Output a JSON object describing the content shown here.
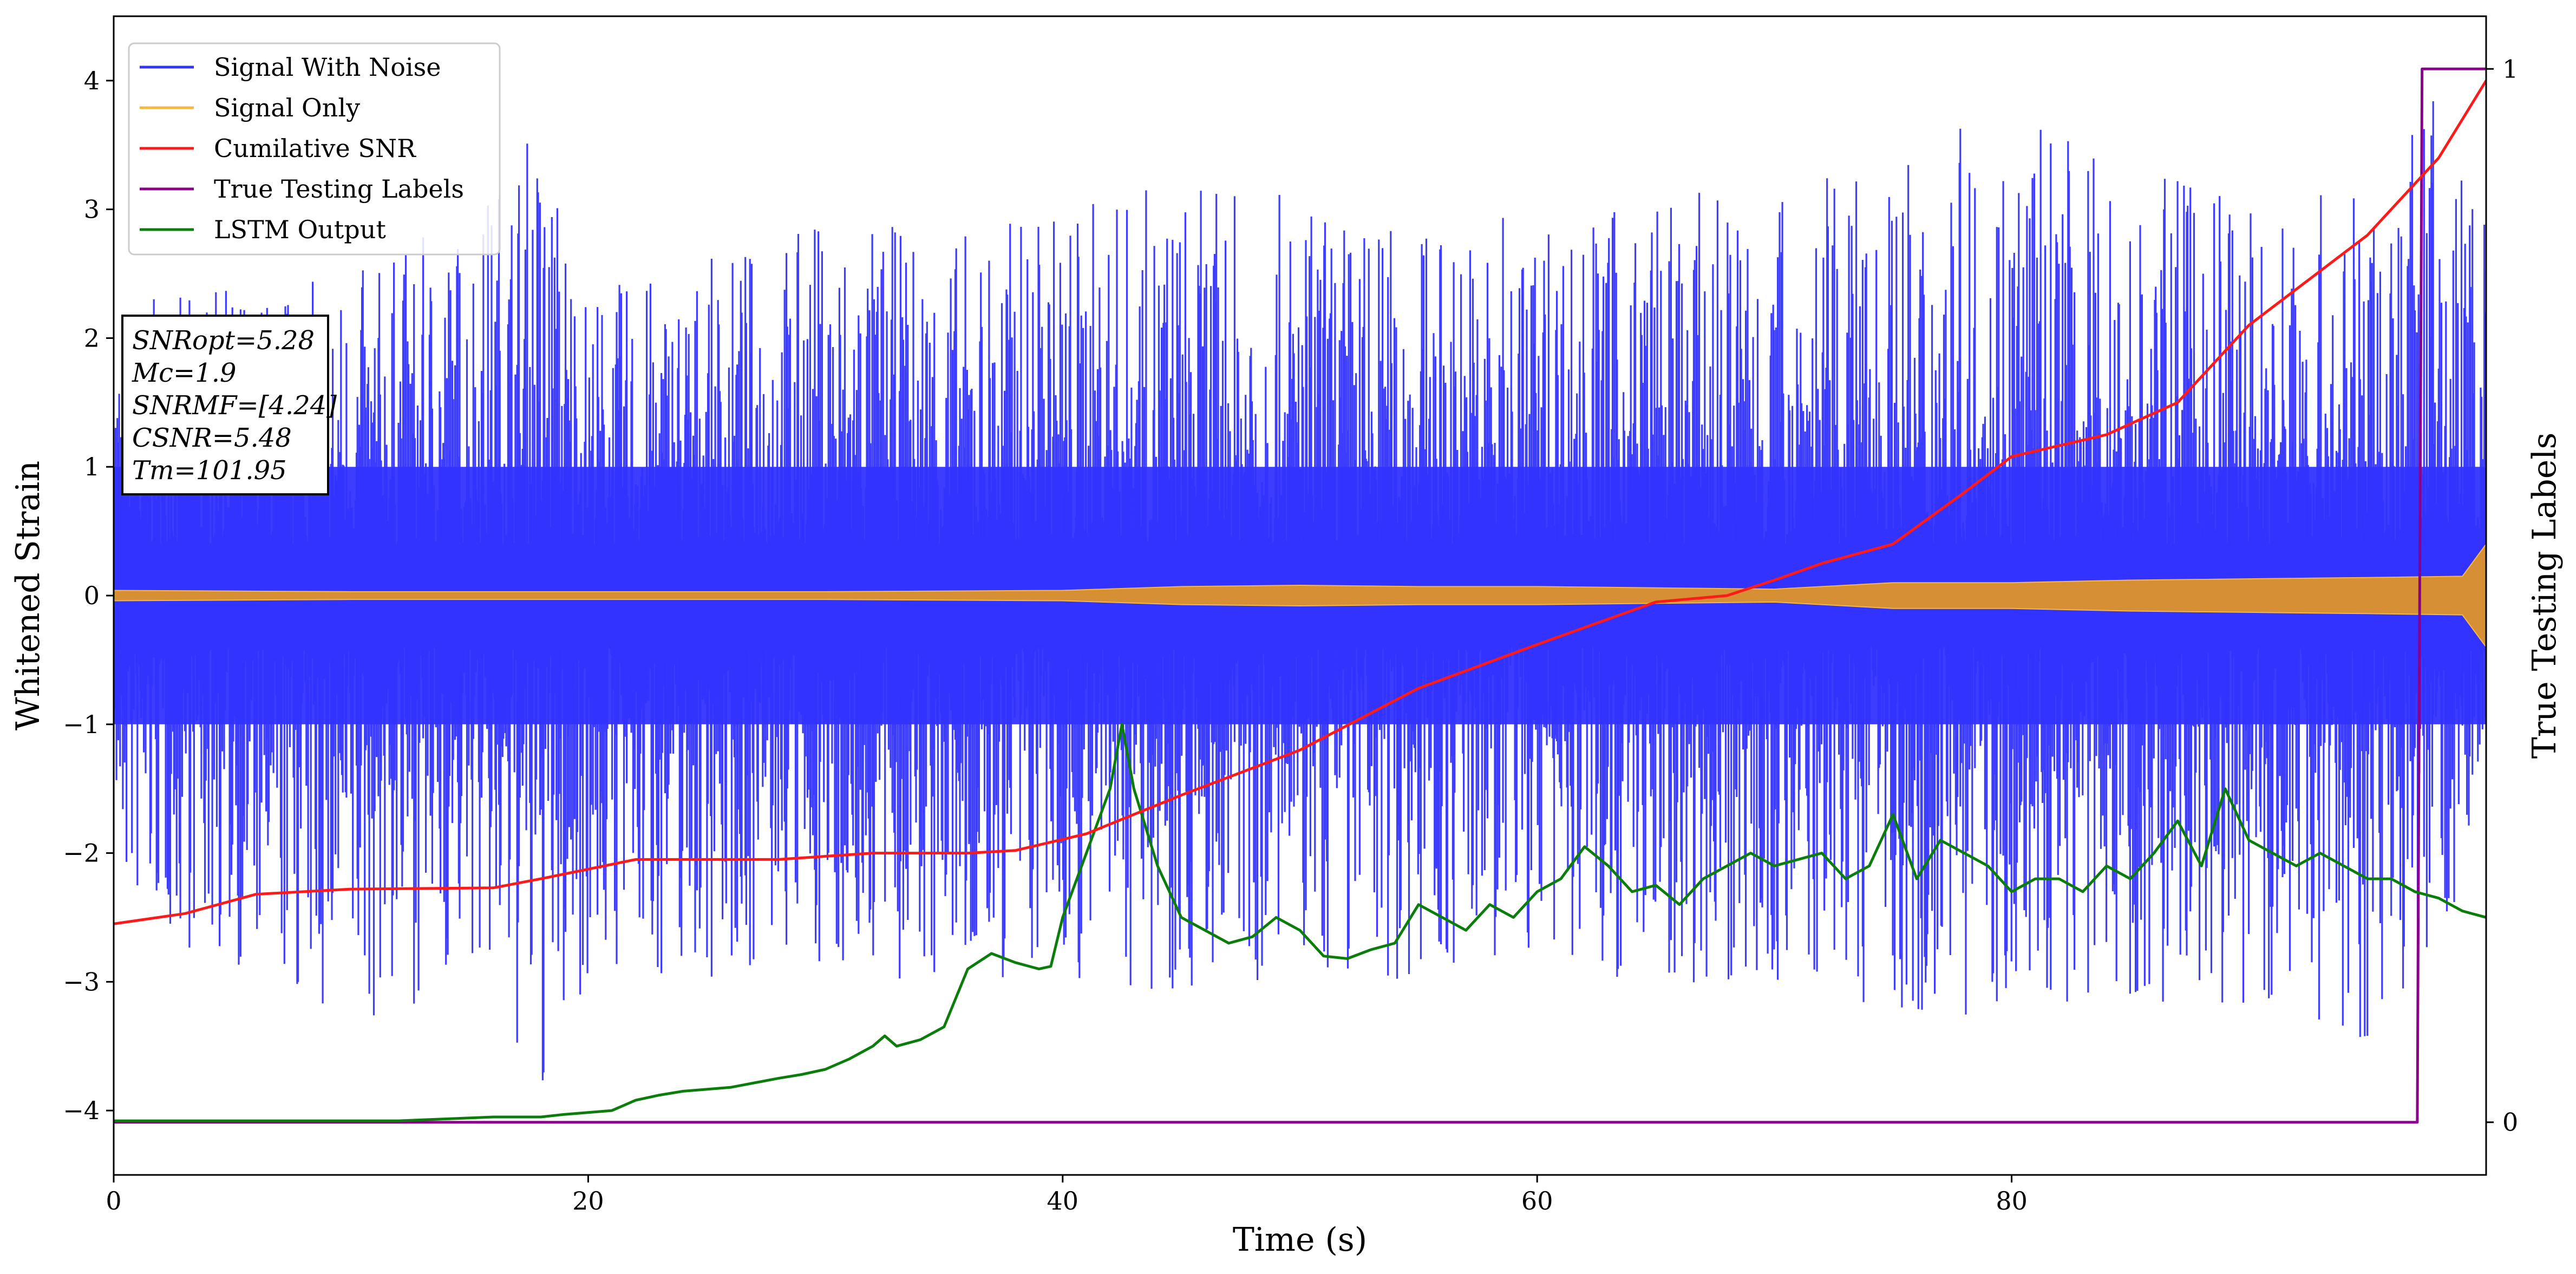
{
  "chart_data": {
    "type": "line",
    "xlabel": "Time (s)",
    "ylabel": "Whitened Strain",
    "ylabel_right": "True Testing Labels",
    "xlim": [
      0,
      100
    ],
    "ylim": [
      -4.5,
      4.5
    ],
    "ylim_right": [
      -0.05,
      1.05
    ],
    "x_ticks": [
      "0",
      "20",
      "40",
      "60",
      "80"
    ],
    "y_ticks": [
      "−4",
      "−3",
      "−2",
      "−1",
      "0",
      "1",
      "2",
      "3",
      "4"
    ],
    "y_ticks_right": [
      "0",
      "1"
    ],
    "grid": false,
    "legend_position": "top-left",
    "legend": [
      {
        "label": "Signal With Noise",
        "color": "#3333ff"
      },
      {
        "label": "Signal Only",
        "color": "#f5b942"
      },
      {
        "label": "Cumilative SNR",
        "color": "#ff1a1a"
      },
      {
        "label": "True Testing Labels",
        "color": "#8b008b"
      },
      {
        "label": "LSTM Output",
        "color": "#0a7d0a"
      }
    ],
    "annotation_lines": [
      "SNRopt=5.28",
      "Mc=1.9",
      "SNRMF=[4.24]",
      "CSNR=5.48",
      "Tm=101.95"
    ],
    "series": [
      {
        "name": "Signal With Noise",
        "axis": "left",
        "color": "#3333ff",
        "x": [
          0,
          1,
          5,
          10,
          15,
          18,
          20,
          25,
          30,
          35,
          40,
          45,
          50,
          55,
          60,
          65,
          70,
          75,
          80,
          85,
          90,
          95,
          98,
          100
        ],
        "upper": [
          2.2,
          2.3,
          2.4,
          2.5,
          3.0,
          3.8,
          2.4,
          2.6,
          3.0,
          2.8,
          3.1,
          3.2,
          3.1,
          2.9,
          3.0,
          3.1,
          3.2,
          3.3,
          3.9,
          3.3,
          3.2,
          3.1,
          4.0,
          3.2
        ],
        "lower": [
          -2.3,
          -2.6,
          -2.9,
          -3.5,
          -2.9,
          -4.1,
          -3.0,
          -3.0,
          -2.9,
          -3.2,
          -3.0,
          -3.1,
          -3.0,
          -3.0,
          -2.9,
          -3.0,
          -3.1,
          -3.2,
          -3.3,
          -3.1,
          -3.3,
          -3.5,
          -3.3,
          -1.0
        ],
        "band_upper": [
          1.0,
          1.0,
          1.0,
          1.0,
          1.0,
          1.0,
          1.0,
          1.0,
          1.0,
          1.0,
          1.0,
          1.0,
          1.0,
          1.0,
          1.0,
          1.0,
          1.0,
          1.0,
          1.0,
          1.0,
          1.0,
          1.0,
          1.0,
          1.0
        ],
        "band_lower": [
          -1.0,
          -1.0,
          -1.0,
          -1.0,
          -1.0,
          -1.0,
          -1.0,
          -1.0,
          -1.0,
          -1.0,
          -1.0,
          -1.0,
          -1.0,
          -1.0,
          -1.0,
          -1.0,
          -1.0,
          -1.0,
          -1.0,
          -1.0,
          -1.0,
          -1.0,
          -1.0,
          -1.0
        ]
      },
      {
        "name": "Signal Only",
        "axis": "left",
        "color": "#f5b942",
        "x": [
          0,
          10,
          20,
          30,
          40,
          45,
          50,
          55,
          60,
          65,
          70,
          75,
          80,
          85,
          90,
          95,
          99,
          100
        ],
        "amplitude": [
          0.04,
          0.03,
          0.03,
          0.03,
          0.04,
          0.07,
          0.08,
          0.07,
          0.07,
          0.06,
          0.05,
          0.1,
          0.1,
          0.12,
          0.13,
          0.14,
          0.15,
          0.4
        ]
      },
      {
        "name": "Cumilative SNR",
        "axis": "left",
        "color": "#ff1a1a",
        "x": [
          0,
          3,
          6,
          10,
          16,
          18,
          22,
          28,
          32,
          36,
          38,
          41,
          45,
          50,
          55,
          60,
          65,
          68,
          70,
          72,
          75,
          78,
          80,
          84,
          87,
          90,
          95,
          98,
          100
        ],
        "y": [
          -2.55,
          -2.47,
          -2.32,
          -2.28,
          -2.27,
          -2.2,
          -2.05,
          -2.05,
          -2.0,
          -2.0,
          -1.98,
          -1.85,
          -1.55,
          -1.2,
          -0.72,
          -0.38,
          -0.05,
          0.0,
          0.12,
          0.25,
          0.4,
          0.8,
          1.08,
          1.25,
          1.5,
          2.1,
          2.8,
          3.4,
          4.0
        ]
      },
      {
        "name": "True Testing Labels",
        "axis": "right",
        "color": "#8b008b",
        "x": [
          0,
          97.1,
          97.3,
          99.7,
          100
        ],
        "y": [
          0,
          0,
          1,
          1,
          1
        ]
      },
      {
        "name": "LSTM Output",
        "axis": "left",
        "color": "#0a7d0a",
        "x": [
          0,
          12,
          16,
          18,
          19,
          21,
          22,
          23,
          24,
          26,
          28,
          29,
          30,
          31,
          32,
          32.5,
          33,
          34,
          35,
          36,
          37,
          38,
          39,
          39.5,
          40,
          41,
          42,
          42.5,
          43,
          44,
          45,
          46,
          47,
          48,
          49,
          50,
          51,
          52,
          53,
          54,
          55,
          56,
          57,
          58,
          59,
          60,
          61,
          62,
          63,
          64,
          65,
          66,
          67,
          68,
          69,
          70,
          71,
          72,
          73,
          74,
          75,
          76,
          77,
          78,
          79,
          80,
          81,
          82,
          83,
          84,
          85,
          86,
          87,
          88,
          89,
          90,
          91,
          92,
          93,
          94,
          95,
          96,
          97,
          98,
          99,
          100
        ],
        "y": [
          -4.08,
          -4.08,
          -4.05,
          -4.05,
          -4.03,
          -4.0,
          -3.92,
          -3.88,
          -3.85,
          -3.82,
          -3.75,
          -3.72,
          -3.68,
          -3.6,
          -3.5,
          -3.42,
          -3.5,
          -3.45,
          -3.35,
          -2.9,
          -2.78,
          -2.85,
          -2.9,
          -2.88,
          -2.5,
          -2.0,
          -1.5,
          -1.0,
          -1.5,
          -2.1,
          -2.5,
          -2.6,
          -2.7,
          -2.65,
          -2.5,
          -2.6,
          -2.8,
          -2.82,
          -2.75,
          -2.7,
          -2.4,
          -2.5,
          -2.6,
          -2.4,
          -2.5,
          -2.3,
          -2.2,
          -1.95,
          -2.1,
          -2.3,
          -2.25,
          -2.4,
          -2.2,
          -2.1,
          -2.0,
          -2.1,
          -2.05,
          -2.0,
          -2.2,
          -2.1,
          -1.7,
          -2.2,
          -1.9,
          -2.0,
          -2.1,
          -2.3,
          -2.2,
          -2.2,
          -2.3,
          -2.1,
          -2.2,
          -2.0,
          -1.75,
          -2.1,
          -1.5,
          -1.9,
          -2.0,
          -2.1,
          -2.0,
          -2.1,
          -2.2,
          -2.2,
          -2.3,
          -2.35,
          -2.45,
          -2.5
        ]
      }
    ]
  }
}
